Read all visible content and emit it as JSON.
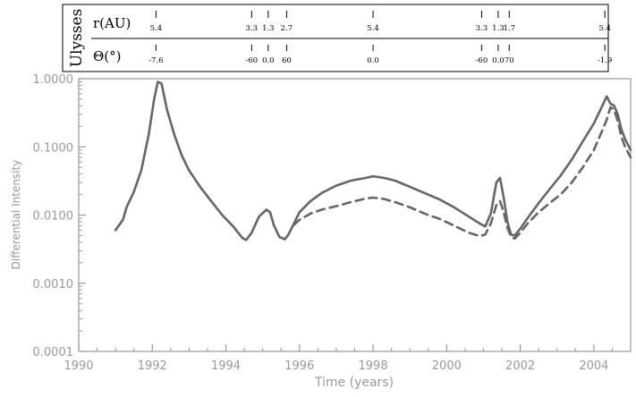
{
  "header_table": {
    "spacecraft_label": "Ulysses",
    "r_label": "r(AU)",
    "theta_label": "Θ(°)",
    "markers": [
      {
        "time": 1992.1,
        "r": "5.4",
        "theta": "-7.6"
      },
      {
        "time": 1994.7,
        "r": "3.3",
        "theta": "-60"
      },
      {
        "time": 1995.15,
        "r": "1.3",
        "theta": "0.0"
      },
      {
        "time": 1995.65,
        "r": "2.7",
        "theta": "60"
      },
      {
        "time": 1998.0,
        "r": "5.4",
        "theta": "0.0"
      },
      {
        "time": 2000.95,
        "r": "3.3",
        "theta": "-60"
      },
      {
        "time": 2001.4,
        "r": "1.3",
        "theta": "0.0"
      },
      {
        "time": 2001.7,
        "r": "1.7",
        "theta": "70"
      },
      {
        "time": 2004.3,
        "r": "5.4",
        "theta": "-1.9"
      }
    ]
  },
  "chart_data": {
    "type": "line",
    "title": "",
    "xlabel": "Time (years)",
    "ylabel": "Differential Intensity",
    "xlim": [
      1990,
      2005
    ],
    "ylim": [
      0.0001,
      1.0
    ],
    "yscale": "log",
    "xticks": [
      1990,
      1992,
      1994,
      1996,
      1998,
      2000,
      2002,
      2004
    ],
    "xtick_labels": [
      "1990",
      "1992",
      "1994",
      "1996",
      "1998",
      "2000",
      "2002",
      "2004"
    ],
    "yticks": [
      0.0001,
      0.001,
      0.01,
      0.1,
      1.0
    ],
    "ytick_labels": [
      "0.0001",
      "0.0010",
      "0.0100",
      "0.1000",
      "1.0000"
    ],
    "grid": false,
    "legend": "none",
    "line_color": "#666666",
    "axis_color": "#999999",
    "series": [
      {
        "style": "solid",
        "x": [
          1991.0,
          1991.2,
          1991.3,
          1991.5,
          1991.7,
          1991.9,
          1992.05,
          1992.15,
          1992.25,
          1992.4,
          1992.6,
          1992.8,
          1993.0,
          1993.3,
          1993.6,
          1993.9,
          1994.2,
          1994.45,
          1994.55,
          1994.7,
          1994.9,
          1995.1,
          1995.2,
          1995.3,
          1995.45,
          1995.6,
          1995.7,
          1995.85,
          1996.0,
          1996.3,
          1996.6,
          1997.0,
          1997.4,
          1997.8,
          1998.0,
          1998.3,
          1998.6,
          1999.0,
          1999.4,
          1999.8,
          2000.2,
          2000.6,
          2000.9,
          2001.05,
          2001.2,
          2001.35,
          2001.45,
          2001.55,
          2001.65,
          2001.75,
          2001.85,
          2002.0,
          2002.2,
          2002.5,
          2002.8,
          2003.1,
          2003.4,
          2003.7,
          2004.0,
          2004.2,
          2004.35,
          2004.45,
          2004.55,
          2004.65,
          2004.75,
          2004.85,
          2005.0
        ],
        "y": [
          0.006,
          0.0085,
          0.013,
          0.022,
          0.045,
          0.15,
          0.5,
          0.9,
          0.85,
          0.35,
          0.15,
          0.075,
          0.045,
          0.026,
          0.016,
          0.01,
          0.0068,
          0.0046,
          0.0043,
          0.0055,
          0.0095,
          0.012,
          0.011,
          0.0072,
          0.0048,
          0.0044,
          0.0052,
          0.0075,
          0.011,
          0.016,
          0.021,
          0.027,
          0.032,
          0.035,
          0.037,
          0.035,
          0.032,
          0.026,
          0.021,
          0.017,
          0.013,
          0.0095,
          0.0075,
          0.0068,
          0.0105,
          0.03,
          0.035,
          0.018,
          0.008,
          0.0052,
          0.005,
          0.0063,
          0.009,
          0.015,
          0.024,
          0.038,
          0.065,
          0.12,
          0.22,
          0.37,
          0.55,
          0.43,
          0.4,
          0.3,
          0.18,
          0.13,
          0.09
        ]
      },
      {
        "style": "dashed",
        "x": [
          1995.85,
          1996.0,
          1996.3,
          1996.6,
          1997.0,
          1997.4,
          1997.8,
          1998.0,
          1998.3,
          1998.6,
          1999.0,
          1999.4,
          1999.8,
          2000.2,
          2000.6,
          2000.9,
          2001.05,
          2001.2,
          2001.35,
          2001.45,
          2001.55,
          2001.65,
          2001.75,
          2001.85,
          2002.0,
          2002.2,
          2002.5,
          2002.8,
          2003.1,
          2003.4,
          2003.7,
          2004.0,
          2004.2,
          2004.35,
          2004.45,
          2004.55,
          2004.65,
          2004.75,
          2004.85,
          2005.0
        ],
        "y": [
          0.0072,
          0.0085,
          0.0105,
          0.012,
          0.0135,
          0.0155,
          0.0175,
          0.018,
          0.0172,
          0.0155,
          0.013,
          0.0105,
          0.0088,
          0.007,
          0.0055,
          0.0049,
          0.0052,
          0.0075,
          0.014,
          0.016,
          0.011,
          0.0065,
          0.0048,
          0.0045,
          0.0055,
          0.0075,
          0.011,
          0.015,
          0.02,
          0.03,
          0.05,
          0.09,
          0.16,
          0.25,
          0.38,
          0.35,
          0.24,
          0.14,
          0.1,
          0.07
        ]
      }
    ]
  }
}
